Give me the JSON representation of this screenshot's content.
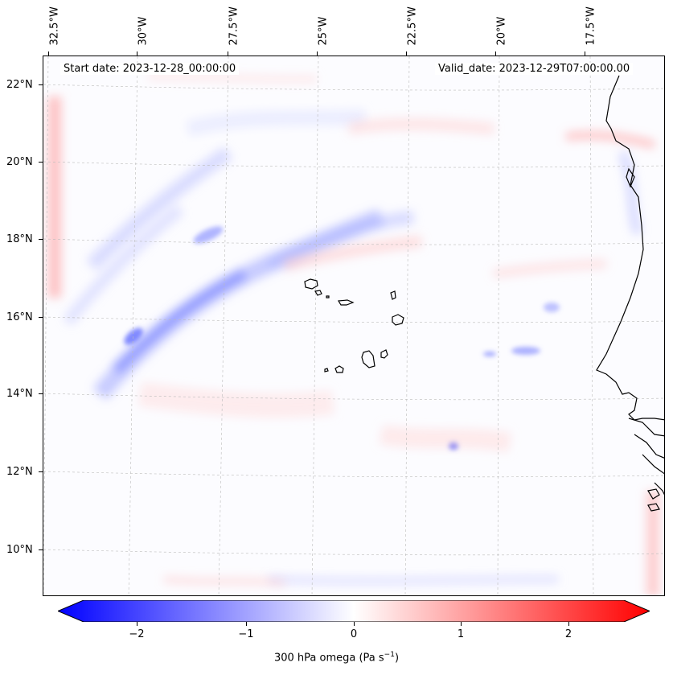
{
  "header": {
    "start_date": "Start date: 2023-12-28_00:00:00",
    "valid_date": "Valid_date: 2023-12-29T07:00:00.00"
  },
  "axes": {
    "lon_labels": [
      "32.5°W",
      "30°W",
      "27.5°W",
      "25°W",
      "22.5°W",
      "20°W",
      "17.5°W"
    ],
    "lat_labels": [
      "22°N",
      "20°N",
      "18°N",
      "16°N",
      "14°N",
      "12°N",
      "10°N"
    ]
  },
  "colorbar": {
    "ticks": [
      "−2",
      "−1",
      "0",
      "1",
      "2"
    ],
    "title": "300 hPa omega (Pa s",
    "title_exponent": "−1",
    "title_close": ")",
    "range": [
      -2.6,
      2.6
    ],
    "colors": {
      "negative": "#0000ff",
      "zero": "#ffffff",
      "positive": "#ff0000"
    }
  },
  "map": {
    "variable": "300 hPa vertical velocity (omega)",
    "region": "Cabo Verde and West African coast"
  }
}
